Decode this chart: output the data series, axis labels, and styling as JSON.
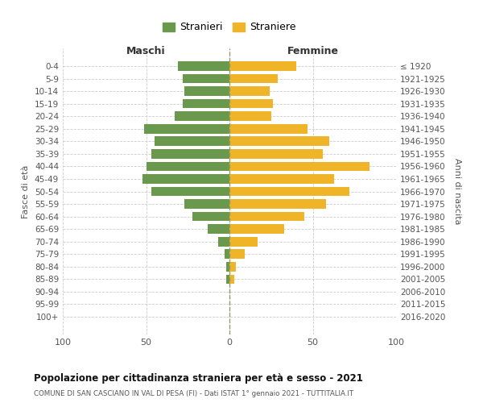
{
  "age_groups": [
    "0-4",
    "5-9",
    "10-14",
    "15-19",
    "20-24",
    "25-29",
    "30-34",
    "35-39",
    "40-44",
    "45-49",
    "50-54",
    "55-59",
    "60-64",
    "65-69",
    "70-74",
    "75-79",
    "80-84",
    "85-89",
    "90-94",
    "95-99",
    "100+"
  ],
  "birth_years": [
    "2016-2020",
    "2011-2015",
    "2006-2010",
    "2001-2005",
    "1996-2000",
    "1991-1995",
    "1986-1990",
    "1981-1985",
    "1976-1980",
    "1971-1975",
    "1966-1970",
    "1961-1965",
    "1956-1960",
    "1951-1955",
    "1946-1950",
    "1941-1945",
    "1936-1940",
    "1931-1935",
    "1926-1930",
    "1921-1925",
    "≤ 1920"
  ],
  "maschi": [
    31,
    28,
    27,
    28,
    33,
    51,
    45,
    47,
    50,
    52,
    47,
    27,
    22,
    13,
    7,
    3,
    2,
    2,
    0,
    0,
    0
  ],
  "femmine": [
    40,
    29,
    24,
    26,
    25,
    47,
    60,
    56,
    84,
    63,
    72,
    58,
    45,
    33,
    17,
    9,
    4,
    3,
    0,
    0,
    0
  ],
  "color_maschi": "#6a994e",
  "color_femmine": "#f0b429",
  "title": "Popolazione per cittadinanza straniera per età e sesso - 2021",
  "subtitle": "COMUNE DI SAN CASCIANO IN VAL DI PESA (FI) - Dati ISTAT 1° gennaio 2021 - TUTTITALIA.IT",
  "xlabel_left": "Maschi",
  "xlabel_right": "Femmine",
  "ylabel_left": "Fasce di età",
  "ylabel_right": "Anni di nascita",
  "legend_stranieri": "Stranieri",
  "legend_straniere": "Straniere",
  "xlim": 100,
  "background_color": "#ffffff",
  "grid_color": "#cccccc"
}
